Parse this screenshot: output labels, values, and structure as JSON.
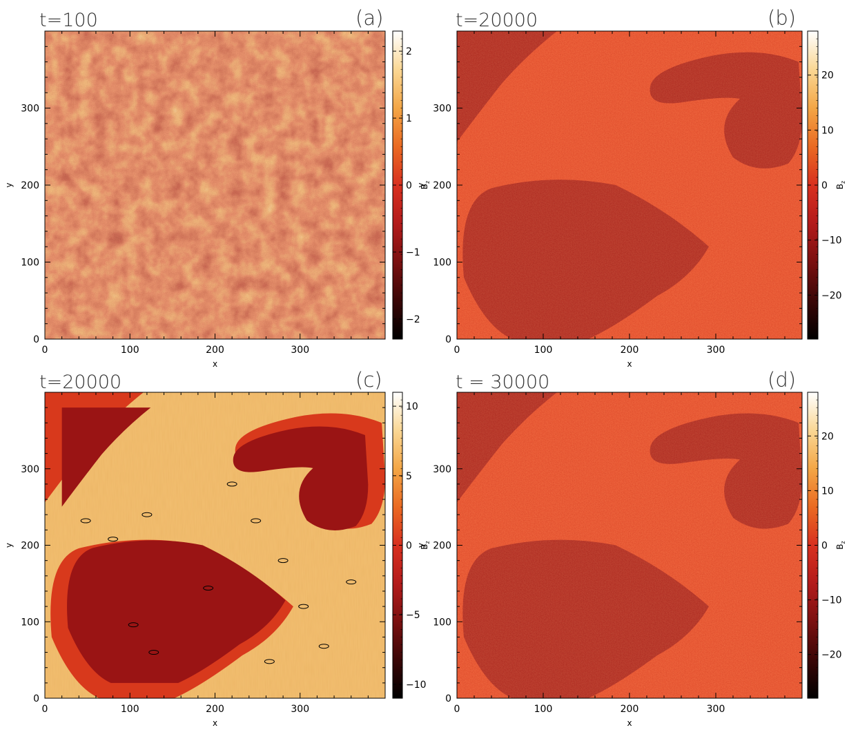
{
  "colors": {
    "background": "#ffffff",
    "colormap": [
      "#000000",
      "#3a0606",
      "#7a1010",
      "#b31b1b",
      "#d8301f",
      "#ea6a22",
      "#f3a646",
      "#fad794",
      "#ffffff"
    ],
    "region_low": "#a01414",
    "region_high": "#e54323",
    "contour_black": "#000000",
    "contour_white": "#ffffff"
  },
  "chart_data": [
    {
      "type": "heatmap",
      "panel_label": "(a)",
      "time_label": "t=100",
      "xlabel": "x",
      "ylabel": "y",
      "xlim": [
        0,
        400
      ],
      "ylim": [
        0,
        400
      ],
      "xticks": [
        "0",
        "100",
        "200",
        "300"
      ],
      "yticks": [
        "0",
        "100",
        "200",
        "300"
      ],
      "colorbar": {
        "label": "B_z",
        "range": [
          -2.3,
          2.3
        ],
        "ticks": [
          "-2",
          "-1",
          "0",
          "1",
          "2"
        ]
      },
      "pattern": "fine-grained random domains"
    },
    {
      "type": "heatmap",
      "panel_label": "(b)",
      "time_label": "t=20000",
      "xlabel": "x",
      "ylabel": "y",
      "xlim": [
        0,
        400
      ],
      "ylim": [
        0,
        400
      ],
      "xticks": [
        "0",
        "100",
        "200",
        "300"
      ],
      "yticks": [
        "0",
        "100",
        "200",
        "300"
      ],
      "colorbar": {
        "label": "B_z",
        "range": [
          -28,
          28
        ],
        "ticks": [
          "-20",
          "-10",
          "0",
          "10",
          "20"
        ]
      },
      "pattern": "large domains"
    },
    {
      "type": "heatmap",
      "panel_label": "(c)",
      "time_label": "t=20000",
      "xlabel": "x",
      "ylabel": "y",
      "xlim": [
        0,
        400
      ],
      "ylim": [
        0,
        400
      ],
      "xticks": [
        "0",
        "100",
        "200",
        "300"
      ],
      "yticks": [
        "0",
        "100",
        "200",
        "300"
      ],
      "colorbar": {
        "label": "B_z",
        "range": [
          -11,
          11
        ],
        "ticks": [
          "-10",
          "-5",
          "0",
          "5",
          "10"
        ]
      },
      "pattern": "smoothed large domains with contours"
    },
    {
      "type": "heatmap",
      "panel_label": "(d)",
      "time_label": "t  =  30000",
      "xlabel": "x",
      "ylabel": "y",
      "xlim": [
        0,
        400
      ],
      "ylim": [
        0,
        400
      ],
      "xticks": [
        "0",
        "100",
        "200",
        "300"
      ],
      "yticks": [
        "0",
        "100",
        "200",
        "300"
      ],
      "colorbar": {
        "label": "B_z",
        "range": [
          -28,
          28
        ],
        "ticks": [
          "-20",
          "-10",
          "0",
          "10",
          "20"
        ]
      },
      "pattern": "large domains"
    }
  ]
}
